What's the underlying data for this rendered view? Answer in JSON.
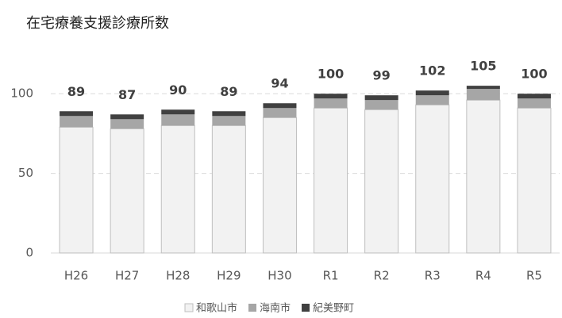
{
  "chart_data": {
    "type": "stacked_bar",
    "title": "在宅療養支援診療所数",
    "categories": [
      "H26",
      "H27",
      "H28",
      "H29",
      "H30",
      "R1",
      "R2",
      "R3",
      "R4",
      "R5"
    ],
    "series": [
      {
        "name": "和歌山市",
        "color": "#f2f2f2",
        "values": [
          79,
          78,
          80,
          80,
          85,
          91,
          90,
          93,
          96,
          91
        ]
      },
      {
        "name": "海南市",
        "color": "#a6a6a6",
        "values": [
          7,
          6,
          7,
          6,
          6,
          6,
          6,
          6,
          7,
          6
        ]
      },
      {
        "name": "紀美野町",
        "color": "#404040",
        "values": [
          3,
          3,
          3,
          3,
          3,
          3,
          3,
          3,
          2,
          3
        ]
      }
    ],
    "totals": [
      89,
      87,
      90,
      89,
      94,
      100,
      99,
      102,
      105,
      100
    ],
    "ylim": [
      0,
      120
    ],
    "yticks": [
      0,
      50,
      100
    ],
    "grid": true,
    "legend": "bottom"
  }
}
